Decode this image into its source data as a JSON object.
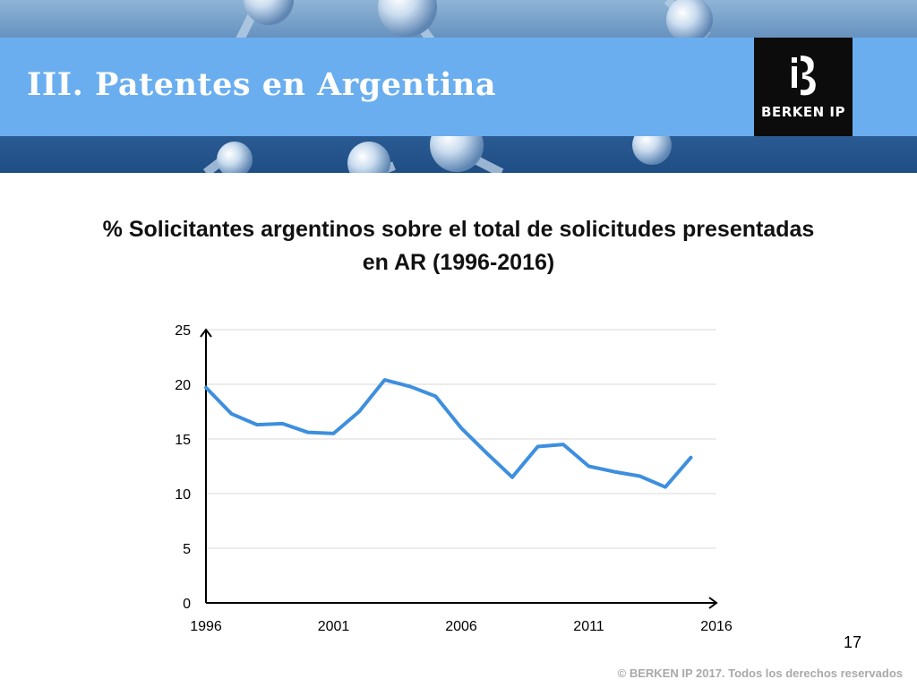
{
  "slide": {
    "title": "III. Patentes en Argentina",
    "page_number": "17",
    "copyright": "© BERKEN IP 2017. Todos los derechos reservados"
  },
  "logo": {
    "text": "BERKEN IP",
    "icon": "berken-ib-logo-icon"
  },
  "colors": {
    "title_band": "#6aaef0",
    "line": "#3d8fdf",
    "logo_bg": "#0c0c0c"
  },
  "chart_data": {
    "type": "line",
    "title": "% Solicitantes argentinos sobre el total de solicitudes presentadas en AR (1996-2016)",
    "xlabel": "",
    "ylabel": "",
    "x": [
      1996,
      1997,
      1998,
      1999,
      2000,
      2001,
      2002,
      2003,
      2004,
      2005,
      2006,
      2007,
      2008,
      2009,
      2010,
      2011,
      2012,
      2013,
      2014,
      2015
    ],
    "series": [
      {
        "values": [
          19.7,
          17.3,
          16.3,
          16.4,
          15.6,
          15.5,
          17.5,
          20.4,
          19.8,
          18.9,
          16.0,
          13.7,
          11.5,
          14.3,
          14.5,
          12.5,
          12.0,
          11.6,
          10.6,
          13.3
        ]
      }
    ],
    "x_ticks": [
      "1996",
      "2001",
      "2006",
      "2011",
      "2016"
    ],
    "y_ticks": [
      "0",
      "5",
      "10",
      "15",
      "20",
      "25"
    ],
    "xlim": [
      1996,
      2016
    ],
    "ylim": [
      0,
      25
    ],
    "grid": true,
    "legend": "none"
  }
}
